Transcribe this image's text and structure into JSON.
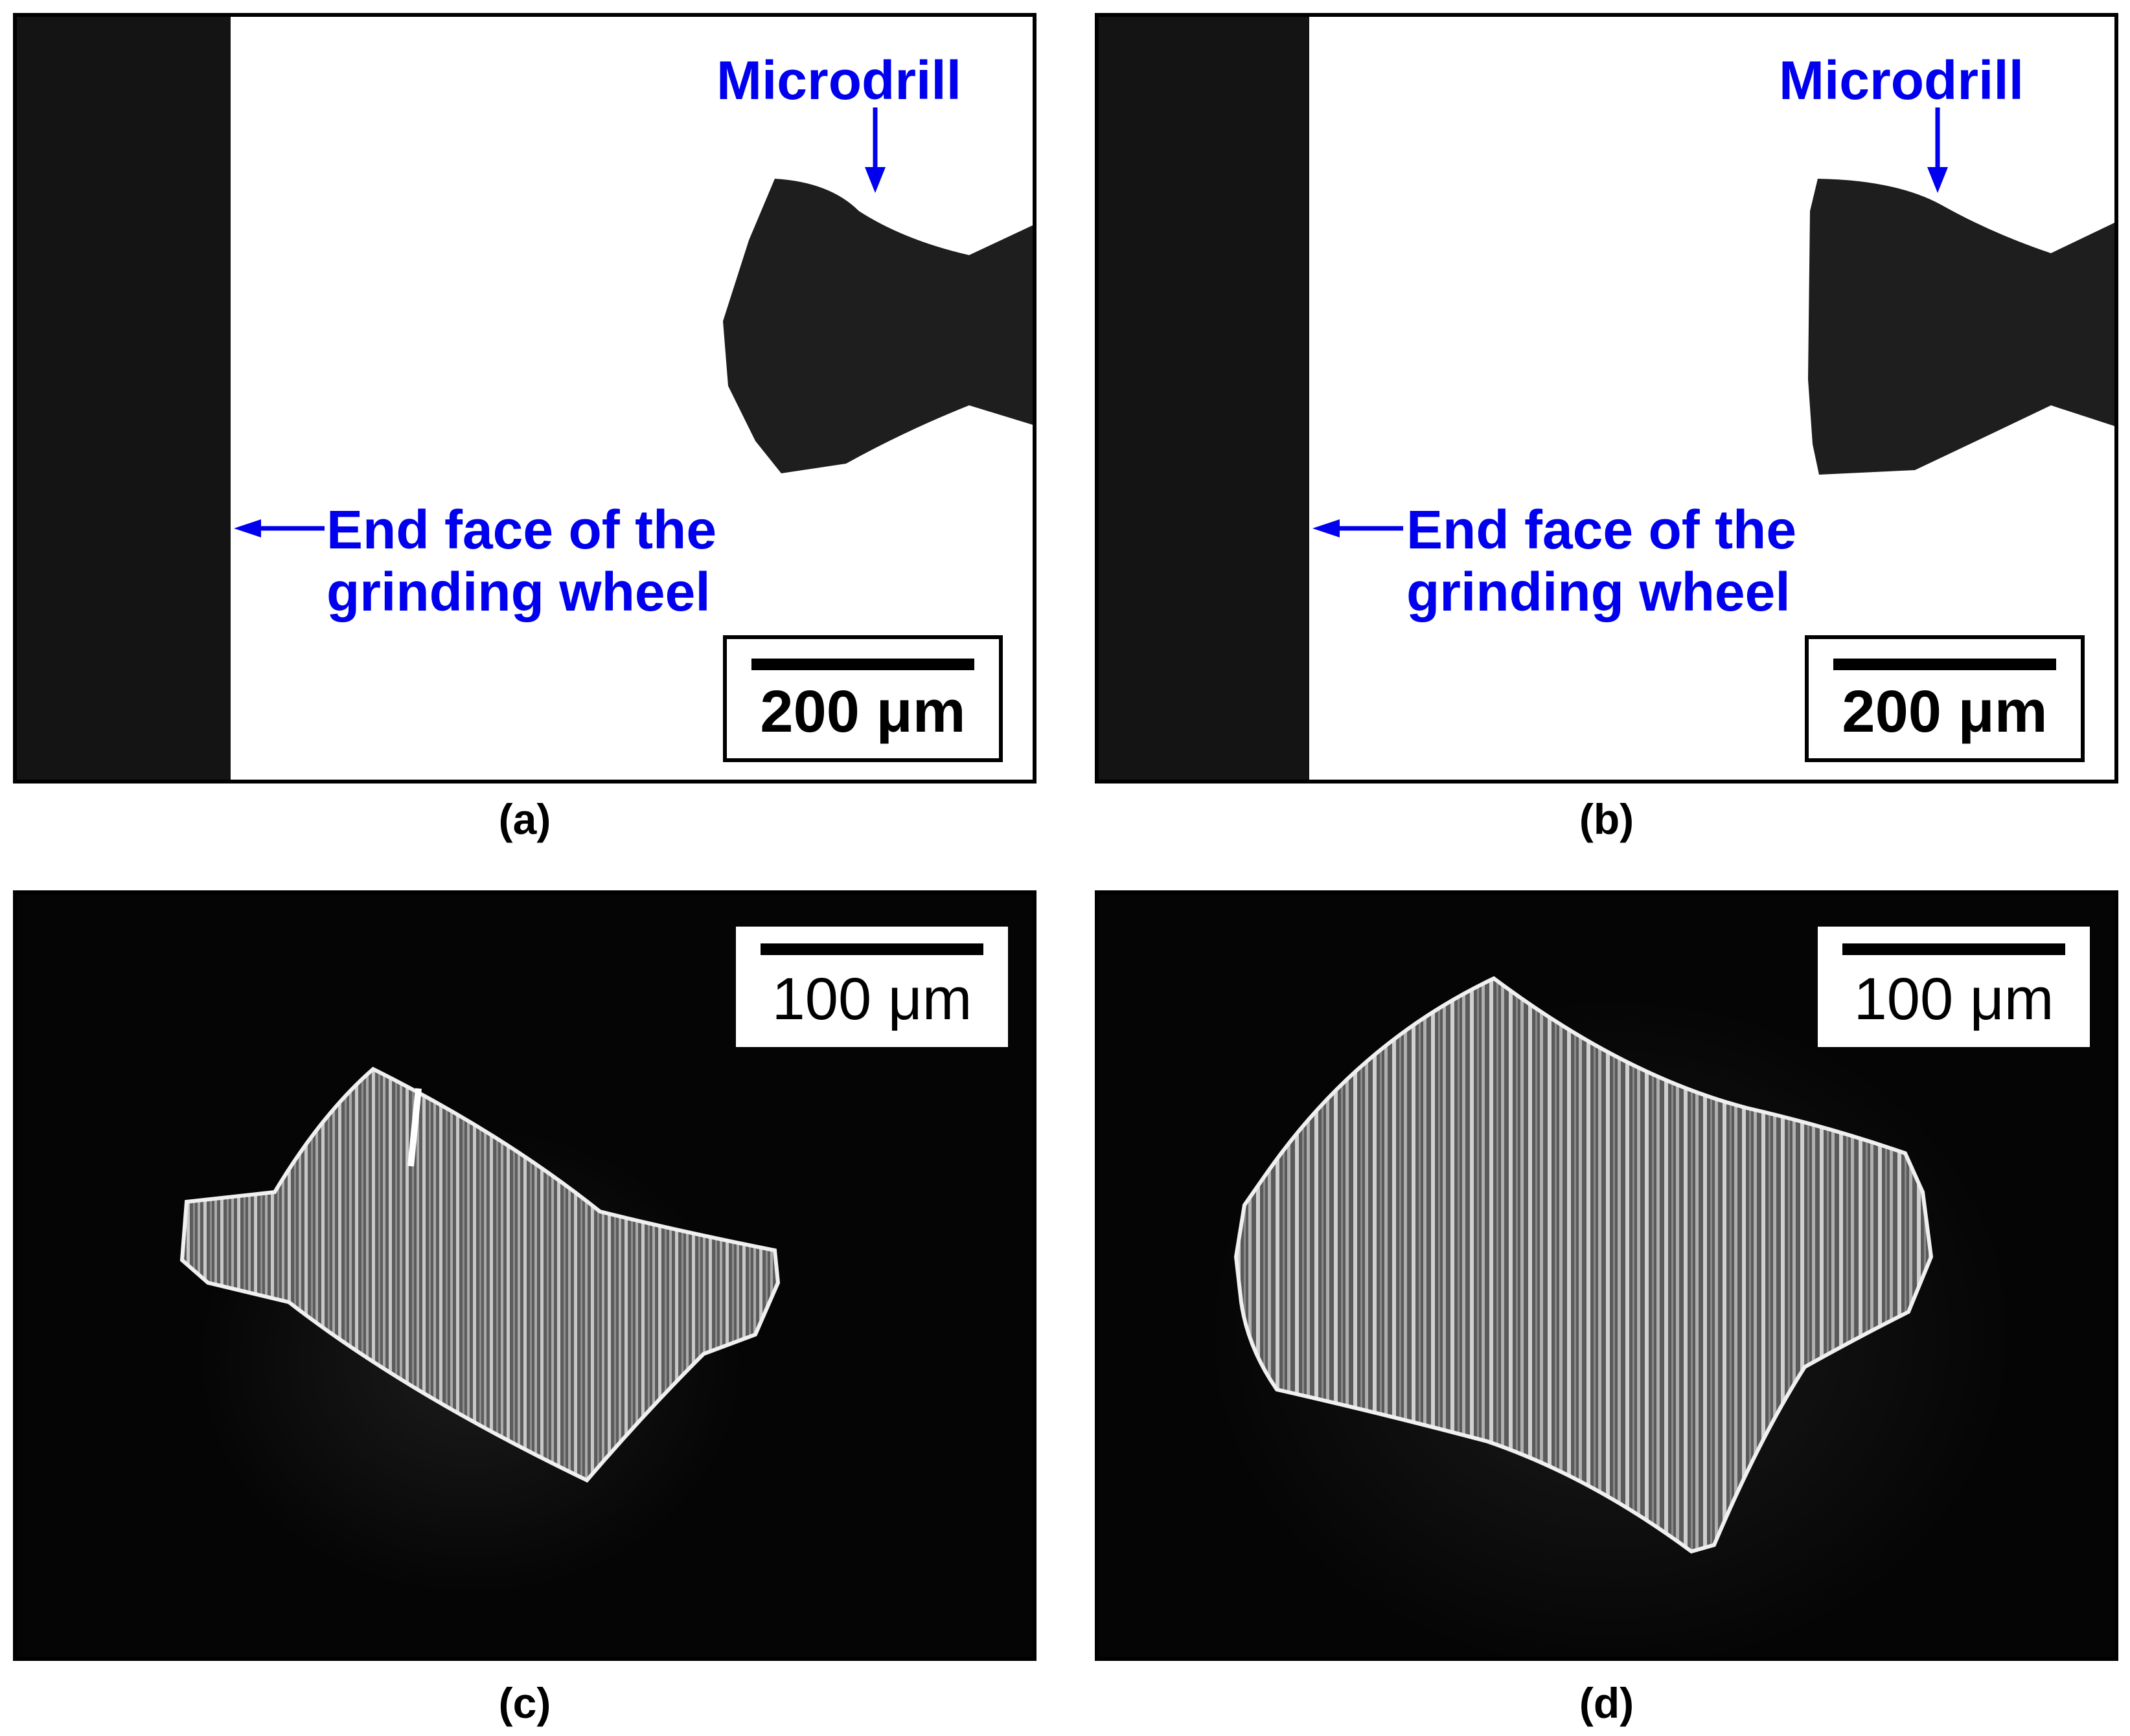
{
  "panels": [
    {
      "id": "a",
      "caption": "(a)",
      "microdrill_label": "Microdrill",
      "end_face_label_line1": "End face of the",
      "end_face_label_line2": "grinding wheel",
      "scale_text": "200 μm"
    },
    {
      "id": "b",
      "caption": "(b)",
      "microdrill_label": "Microdrill",
      "end_face_label_line1": "End face of the",
      "end_face_label_line2": "grinding wheel",
      "scale_text": "200 μm"
    },
    {
      "id": "c",
      "caption": "(c)",
      "scale_text": "100 μm"
    },
    {
      "id": "d",
      "caption": "(d)",
      "scale_text": "100 μm"
    }
  ],
  "colors": {
    "annotation": "#0000ee",
    "frame": "#000000",
    "wheel": "#141414",
    "drill": "#1e1e1e"
  }
}
